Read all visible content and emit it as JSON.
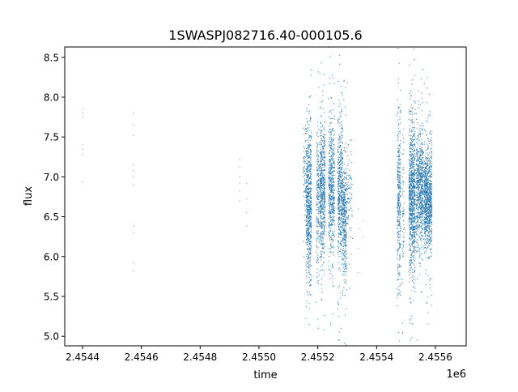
{
  "chart_data": {
    "type": "scatter",
    "title": "1SWASPJ082716.40-000105.6",
    "xlabel": "time",
    "ylabel": "flux",
    "x_offset_label": "1e6",
    "xlim": [
      2454339.5,
      2455704.7
    ],
    "ylim": [
      4.88,
      8.63
    ],
    "xticks": [
      2454400,
      2454600,
      2454800,
      2455000,
      2455200,
      2455400,
      2455600
    ],
    "xtick_labels": [
      "2.4544",
      "2.4546",
      "2.4548",
      "2.4550",
      "2.4552",
      "2.4554",
      "2.4556"
    ],
    "yticks": [
      5.0,
      5.5,
      6.0,
      6.5,
      7.0,
      7.5,
      8.0,
      8.5
    ],
    "ytick_labels": [
      "5.0",
      "5.5",
      "6.0",
      "6.5",
      "7.0",
      "7.5",
      "8.0",
      "8.5"
    ],
    "grid": false,
    "marker_color": "#1f77b4",
    "sparse_points": [
      [
        2454400,
        7.85
      ],
      [
        2454400,
        7.8
      ],
      [
        2454400,
        7.75
      ],
      [
        2454400,
        7.4
      ],
      [
        2454400,
        7.35
      ],
      [
        2454400,
        7.28
      ],
      [
        2454400,
        6.94
      ],
      [
        2454573,
        7.8
      ],
      [
        2454573,
        7.65
      ],
      [
        2454573,
        7.52
      ],
      [
        2454573,
        7.15
      ],
      [
        2454573,
        7.08
      ],
      [
        2454573,
        7.0
      ],
      [
        2454573,
        6.9
      ],
      [
        2454573,
        6.38
      ],
      [
        2454573,
        6.3
      ],
      [
        2454573,
        5.92
      ],
      [
        2454573,
        5.82
      ],
      [
        2454934,
        7.22
      ],
      [
        2454934,
        7.12
      ],
      [
        2454934,
        7.0
      ],
      [
        2454934,
        6.92
      ],
      [
        2454934,
        6.82
      ],
      [
        2454934,
        6.7
      ],
      [
        2454958,
        6.92
      ],
      [
        2454958,
        6.72
      ],
      [
        2454958,
        6.55
      ],
      [
        2454958,
        6.38
      ],
      [
        2455338,
        6.6
      ],
      [
        2455338,
        6.35
      ],
      [
        2455338,
        6.1
      ],
      [
        2455338,
        5.8
      ],
      [
        2455355,
        6.45
      ],
      [
        2455355,
        6.25
      ]
    ],
    "dense_clusters": [
      {
        "t": [
          2455150,
          2455160
        ],
        "flux_mean": 7.1,
        "flux_sd": 0.35,
        "n": 60
      },
      {
        "t": [
          2455160,
          2455178
        ],
        "flux_mean": 6.65,
        "flux_sd": 0.45,
        "n": 700
      },
      {
        "t": [
          2455195,
          2455205
        ],
        "flux_mean": 6.7,
        "flux_sd": 0.45,
        "n": 200
      },
      {
        "t": [
          2455207,
          2455225
        ],
        "flux_mean": 6.85,
        "flux_sd": 0.4,
        "n": 600
      },
      {
        "t": [
          2455237,
          2455257
        ],
        "flux_mean": 6.85,
        "flux_sd": 0.4,
        "n": 550
      },
      {
        "t": [
          2455268,
          2455285
        ],
        "flux_mean": 6.8,
        "flux_sd": 0.45,
        "n": 500
      },
      {
        "t": [
          2455285,
          2455298
        ],
        "flux_mean": 6.45,
        "flux_sd": 0.35,
        "n": 350
      },
      {
        "t": [
          2455300,
          2455318
        ],
        "flux_mean": 6.8,
        "flux_sd": 0.35,
        "n": 80
      },
      {
        "t": [
          2455470,
          2455482
        ],
        "flux_mean": 6.7,
        "flux_sd": 0.55,
        "n": 350
      },
      {
        "t": [
          2455488,
          2455494
        ],
        "flux_mean": 6.7,
        "flux_sd": 0.4,
        "n": 60
      },
      {
        "t": [
          2455510,
          2455532
        ],
        "flux_mean": 6.75,
        "flux_sd": 0.45,
        "n": 900
      },
      {
        "t": [
          2455535,
          2455560
        ],
        "flux_mean": 6.85,
        "flux_sd": 0.35,
        "n": 700
      },
      {
        "t": [
          2455562,
          2455588
        ],
        "flux_mean": 6.7,
        "flux_sd": 0.3,
        "n": 900
      }
    ]
  }
}
